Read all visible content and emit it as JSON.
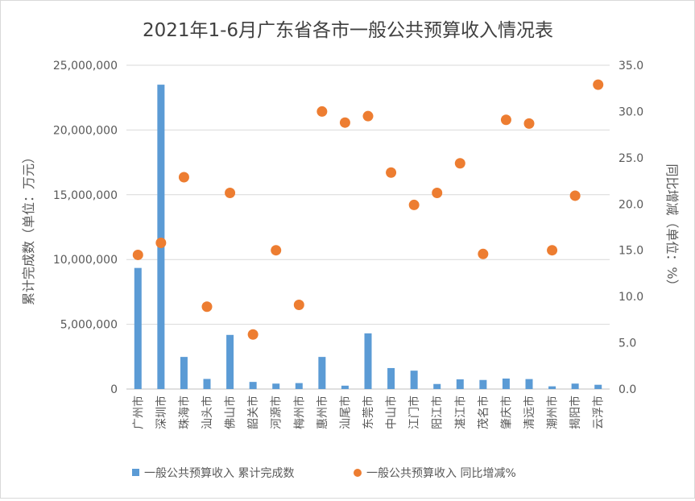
{
  "chart_data": {
    "type": "bar+scatter",
    "title": "2021年1-6月广东省各市一般公共预算收入情况表",
    "ylabel_left": "累计完成数（单位：万元）",
    "ylabel_right": "同比增减（单位：%）",
    "categories": [
      "广州市",
      "深圳市",
      "珠海市",
      "汕头市",
      "佛山市",
      "韶关市",
      "河源市",
      "梅州市",
      "惠州市",
      "汕尾市",
      "东莞市",
      "中山市",
      "江门市",
      "阳江市",
      "湛江市",
      "茂名市",
      "肇庆市",
      "清远市",
      "潮州市",
      "揭阳市",
      "云浮市"
    ],
    "ylim_left": [
      0,
      25000000
    ],
    "yticks_left": [
      "0",
      "5,000,000",
      "10,000,000",
      "15,000,000",
      "20,000,000",
      "25,000,000"
    ],
    "ylim_right": [
      0,
      35
    ],
    "yticks_right": [
      "0.0",
      "5.0",
      "10.0",
      "15.0",
      "20.0",
      "25.0",
      "30.0",
      "35.0"
    ],
    "series": [
      {
        "name": "一般公共预算收入 累计完成数",
        "type": "bar",
        "axis": "left",
        "color": "#5b9bd5",
        "values": [
          9350000,
          23500000,
          2480000,
          780000,
          4180000,
          550000,
          420000,
          460000,
          2480000,
          260000,
          4300000,
          1620000,
          1420000,
          390000,
          750000,
          700000,
          810000,
          770000,
          210000,
          420000,
          330000
        ]
      },
      {
        "name": "一般公共预算收入 同比增减%",
        "type": "scatter",
        "axis": "right",
        "color": "#ed7d31",
        "values": [
          14.5,
          15.8,
          22.9,
          8.9,
          21.2,
          5.9,
          15.0,
          9.1,
          30.0,
          28.8,
          29.5,
          23.4,
          19.9,
          21.2,
          24.4,
          14.6,
          29.1,
          28.7,
          15.0,
          20.9,
          32.9
        ]
      }
    ],
    "grid": "horizontal",
    "legend": "bottom"
  }
}
